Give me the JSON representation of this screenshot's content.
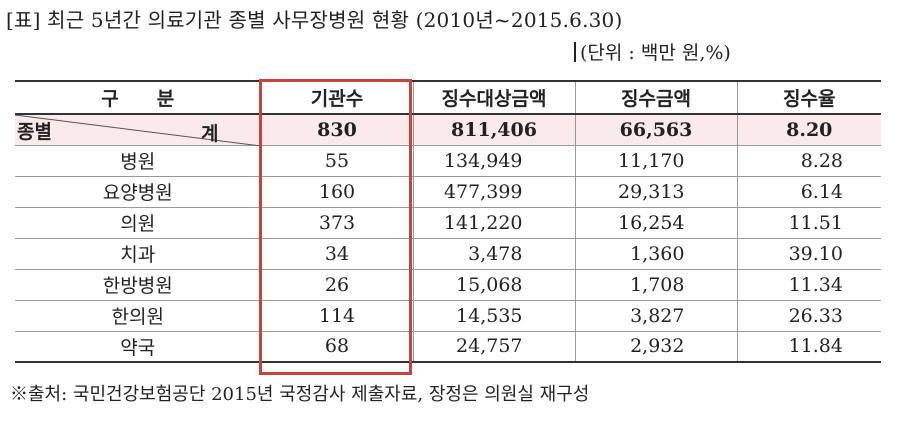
{
  "title": "[표] 최근 5년간 의료기관 종별 사무장병원 현황 (2010년~2015.6.30)",
  "unit": "(단위 : 백만 원,%)",
  "headers": [
    "구　　분",
    "기관수",
    "징수대상금액",
    "징수금액",
    "징수율"
  ],
  "total": {
    "label_top": "종별",
    "label_bottom": "계",
    "institutions": "830",
    "target_amount": "811,406",
    "collected_amount": "66,563",
    "collection_rate": "8.20"
  },
  "rows": [
    {
      "category": "병원",
      "institutions": "55",
      "target_amount": "134,949",
      "collected_amount": "11,170",
      "collection_rate": "8.28"
    },
    {
      "category": "요양병원",
      "institutions": "160",
      "target_amount": "477,399",
      "collected_amount": "29,313",
      "collection_rate": "6.14"
    },
    {
      "category": "의원",
      "institutions": "373",
      "target_amount": "141,220",
      "collected_amount": "16,254",
      "collection_rate": "11.51"
    },
    {
      "category": "치과",
      "institutions": "34",
      "target_amount": "3,478",
      "collected_amount": "1,360",
      "collection_rate": "39.10"
    },
    {
      "category": "한방병원",
      "institutions": "26",
      "target_amount": "15,068",
      "collected_amount": "1,708",
      "collection_rate": "11.34"
    },
    {
      "category": "한의원",
      "institutions": "114",
      "target_amount": "14,535",
      "collected_amount": "3,827",
      "collection_rate": "26.33"
    },
    {
      "category": "약국",
      "institutions": "68",
      "target_amount": "24,757",
      "collected_amount": "2,932",
      "collection_rate": "11.84"
    }
  ],
  "highlight_color": "#c6443f",
  "total_row_color": "#fbeaea",
  "source": "※출처: 국민건강보험공단 2015년 국정감사 제출자료, 장정은 의원실 재구성"
}
